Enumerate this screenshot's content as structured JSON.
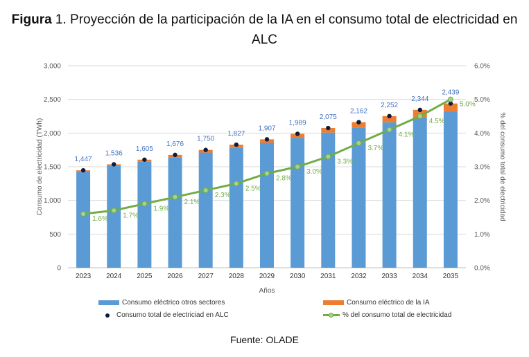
{
  "title": {
    "bold": "Figura",
    "rest": " 1. Proyección de la participación de la IA en el consumo total de electricidad en",
    "line2": "ALC"
  },
  "source": "Fuente: OLADE",
  "colors": {
    "other": "#5b9bd5",
    "ia": "#ed7d31",
    "dot": "#0d1b3d",
    "line": "#70ad47",
    "grid": "#d9d9d9",
    "axis": "#595959",
    "total_label": "#4472c4",
    "pct_label": "#70ad47"
  },
  "chart_data": {
    "type": "bar",
    "categories": [
      "2023",
      "2024",
      "2025",
      "2026",
      "2027",
      "2028",
      "2029",
      "2030",
      "2031",
      "2032",
      "2033",
      "2034",
      "2035"
    ],
    "series": [
      {
        "name": "Consumo eléctrico otros sectores",
        "type": "bar",
        "values": [
          1424,
          1510,
          1575,
          1641,
          1710,
          1781,
          1854,
          1929,
          2007,
          2082,
          2160,
          2238,
          2317
        ]
      },
      {
        "name": "Consumo eléctrico de la IA",
        "type": "bar",
        "values": [
          23,
          26,
          30,
          35,
          40,
          46,
          53,
          60,
          68,
          80,
          92,
          106,
          122
        ]
      },
      {
        "name": "Consumo total de electriciad en ALC",
        "type": "scatter",
        "values": [
          1447,
          1536,
          1605,
          1676,
          1750,
          1827,
          1907,
          1989,
          2075,
          2162,
          2252,
          2344,
          2439
        ]
      },
      {
        "name": "% del consumo total de electricidad",
        "type": "line",
        "axis": "right",
        "values": [
          1.6,
          1.7,
          1.9,
          2.1,
          2.3,
          2.5,
          2.8,
          3.0,
          3.3,
          3.7,
          4.1,
          4.5,
          5.0
        ]
      }
    ],
    "total_labels": [
      "1,447",
      "1,536",
      "1,605",
      "1,676",
      "1,750",
      "1,827",
      "1,907",
      "1,989",
      "2,075",
      "2,162",
      "2,252",
      "2,344",
      "2,439"
    ],
    "pct_labels": [
      "1.6%",
      "1.7%",
      "1.9%",
      "2.1%",
      "2.3%",
      "2.5%",
      "2.8%",
      "3.0%",
      "3.3%",
      "3.7%",
      "4.1%",
      "4.5%",
      "5.0%"
    ],
    "xlabel": "Años",
    "ylabel": "Consumo de electricidad (TWh)",
    "y2label": "% del consumo total de electricidad",
    "ylim": [
      0,
      3000
    ],
    "y2lim": [
      0,
      6
    ],
    "yticks": [
      "0",
      "500",
      "1,000",
      "1,500",
      "2,000",
      "2,500",
      "3,000"
    ],
    "y2ticks": [
      "0.0%",
      "1.0%",
      "2.0%",
      "3.0%",
      "4.0%",
      "5.0%",
      "6.0%"
    ],
    "grid": true,
    "legend_position": "bottom"
  }
}
